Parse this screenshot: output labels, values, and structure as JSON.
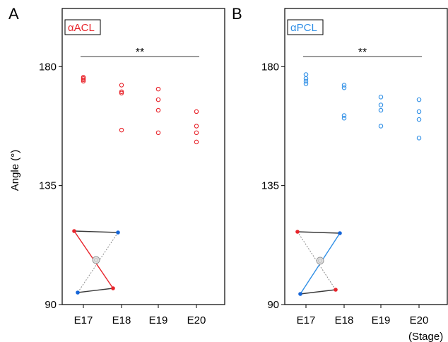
{
  "colors": {
    "acl": "#e8242b",
    "pcl": "#2f8fe6",
    "frame": "#000000",
    "line_dark": "#3a3a3a",
    "line_dashed": "#8a8a8a",
    "dot_red": "#e8242b",
    "dot_blue": "#1565d8"
  },
  "figure": {
    "y_axis_label": "Angle (°)",
    "x_axis_unit": "(Stage)"
  },
  "chart_data": [
    {
      "type": "scatter",
      "panel_letter": "A",
      "label": "αACL",
      "categories": [
        "E17",
        "E18",
        "E19",
        "E20"
      ],
      "yticks": [
        90,
        135,
        180
      ],
      "ylim": [
        90,
        202
      ],
      "significance": {
        "from": "E17",
        "to": "E20",
        "text": "**"
      },
      "points": [
        {
          "x": "E17",
          "y": 174.5
        },
        {
          "x": "E17",
          "y": 175.0
        },
        {
          "x": "E17",
          "y": 175.5
        },
        {
          "x": "E17",
          "y": 176.0
        },
        {
          "x": "E18",
          "y": 173.0
        },
        {
          "x": "E18",
          "y": 170.5
        },
        {
          "x": "E18",
          "y": 170.0
        },
        {
          "x": "E18",
          "y": 156.0
        },
        {
          "x": "E19",
          "y": 171.5
        },
        {
          "x": "E19",
          "y": 167.5
        },
        {
          "x": "E19",
          "y": 163.5
        },
        {
          "x": "E19",
          "y": 155.0
        },
        {
          "x": "E20",
          "y": 163.0
        },
        {
          "x": "E20",
          "y": 157.5
        },
        {
          "x": "E20",
          "y": 155.0
        },
        {
          "x": "E20",
          "y": 151.5
        }
      ]
    },
    {
      "type": "scatter",
      "panel_letter": "B",
      "label": "αPCL",
      "categories": [
        "E17",
        "E18",
        "E19",
        "E20"
      ],
      "yticks": [
        90,
        135,
        180
      ],
      "ylim": [
        90,
        202
      ],
      "significance": {
        "from": "E17",
        "to": "E20",
        "text": "**"
      },
      "points": [
        {
          "x": "E17",
          "y": 177.0
        },
        {
          "x": "E17",
          "y": 175.5
        },
        {
          "x": "E17",
          "y": 174.5
        },
        {
          "x": "E17",
          "y": 173.5
        },
        {
          "x": "E18",
          "y": 173.0
        },
        {
          "x": "E18",
          "y": 172.0
        },
        {
          "x": "E18",
          "y": 161.5
        },
        {
          "x": "E18",
          "y": 160.5
        },
        {
          "x": "E19",
          "y": 168.5
        },
        {
          "x": "E19",
          "y": 165.5
        },
        {
          "x": "E19",
          "y": 163.5
        },
        {
          "x": "E19",
          "y": 157.5
        },
        {
          "x": "E20",
          "y": 167.5
        },
        {
          "x": "E20",
          "y": 163.0
        },
        {
          "x": "E20",
          "y": 160.0
        },
        {
          "x": "E20",
          "y": 153.0
        }
      ]
    }
  ]
}
